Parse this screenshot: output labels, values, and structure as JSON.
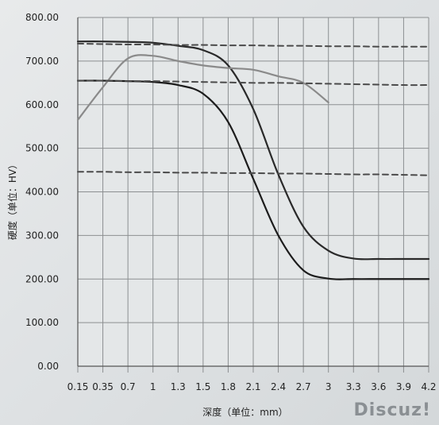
{
  "watermark": "Discuz!",
  "chart_data": {
    "type": "line",
    "xlabel": "深度（单位：mm）",
    "ylabel": "硬度（单位：HV）",
    "ylim": [
      0,
      800
    ],
    "y_ticks": [
      "0.00",
      "100.00",
      "200.00",
      "300.00",
      "400.00",
      "500.00",
      "600.00",
      "700.00",
      "800.00"
    ],
    "categories": [
      "0.15",
      "0.35",
      "0.7",
      "1",
      "1.3",
      "1.5",
      "1.8",
      "2.1",
      "2.4",
      "2.7",
      "3",
      "3.3",
      "3.6",
      "3.9",
      "4.2"
    ],
    "grid": true,
    "series": [
      {
        "color": "#2a2a2a",
        "style": "solid",
        "values": [
          745,
          745,
          744,
          742,
          735,
          725,
          690,
          590,
          440,
          320,
          265,
          247,
          246,
          246,
          246
        ]
      },
      {
        "color": "#1c1c1c",
        "style": "solid",
        "values": [
          655,
          655,
          654,
          652,
          645,
          625,
          560,
          430,
          300,
          220,
          201,
          200,
          200,
          200,
          200
        ]
      },
      {
        "color": "#8a8a8a",
        "style": "solid",
        "values": [
          565,
          640,
          706,
          712,
          700,
          690,
          684,
          680,
          665,
          650,
          605,
          null,
          null,
          null,
          null
        ]
      },
      {
        "color": "#4a4a4a",
        "style": "dashed",
        "values": [
          740,
          739,
          738,
          738,
          737,
          737,
          736,
          736,
          735,
          735,
          734,
          734,
          733,
          733,
          733
        ]
      },
      {
        "color": "#4a4a4a",
        "style": "dashed",
        "values": [
          655,
          655,
          654,
          654,
          653,
          652,
          651,
          650,
          650,
          649,
          648,
          647,
          646,
          645,
          645
        ]
      },
      {
        "color": "#4a4a4a",
        "style": "dashed",
        "values": [
          446,
          446,
          445,
          445,
          444,
          444,
          443,
          443,
          442,
          442,
          441,
          440,
          440,
          439,
          438
        ]
      }
    ]
  }
}
